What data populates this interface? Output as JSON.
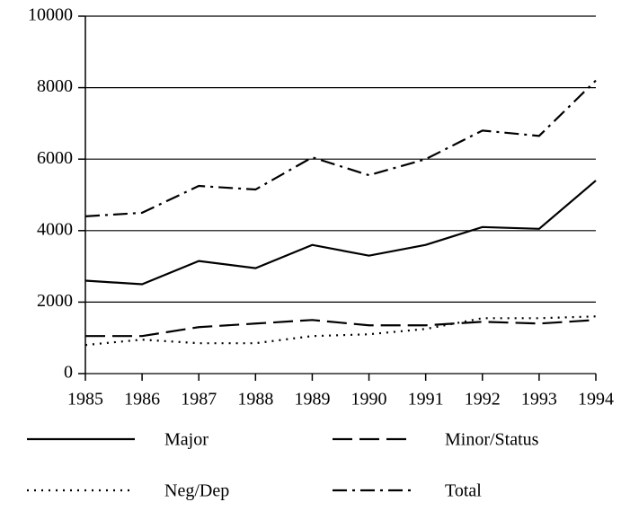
{
  "chart_data": {
    "type": "line",
    "x": [
      1985,
      1986,
      1987,
      1988,
      1989,
      1990,
      1991,
      1992,
      1993,
      1994
    ],
    "xlim": [
      1985,
      1994
    ],
    "xticks": [
      1985,
      1986,
      1987,
      1988,
      1989,
      1990,
      1991,
      1992,
      1993,
      1994
    ],
    "ylim": [
      0,
      10000
    ],
    "yticks": [
      0,
      2000,
      4000,
      6000,
      8000,
      10000
    ],
    "grid": true,
    "legend": "bottom",
    "series": [
      {
        "name": "Major",
        "color": "#000000",
        "dash": "solid",
        "values": [
          2600,
          2500,
          3150,
          2950,
          3600,
          3300,
          3600,
          4100,
          4050,
          5400
        ]
      },
      {
        "name": "Minor/Status",
        "color": "#000000",
        "dash": "dashed",
        "values": [
          1050,
          1050,
          1300,
          1400,
          1500,
          1350,
          1350,
          1450,
          1400,
          1500
        ]
      },
      {
        "name": "Neg/Dep",
        "color": "#000000",
        "dash": "dotted",
        "values": [
          800,
          950,
          850,
          850,
          1050,
          1100,
          1250,
          1550,
          1550,
          1600
        ]
      },
      {
        "name": "Total",
        "color": "#000000",
        "dash": "dashdot",
        "values": [
          4400,
          4500,
          5250,
          5150,
          6050,
          5550,
          6000,
          6800,
          6650,
          8200
        ]
      }
    ]
  }
}
